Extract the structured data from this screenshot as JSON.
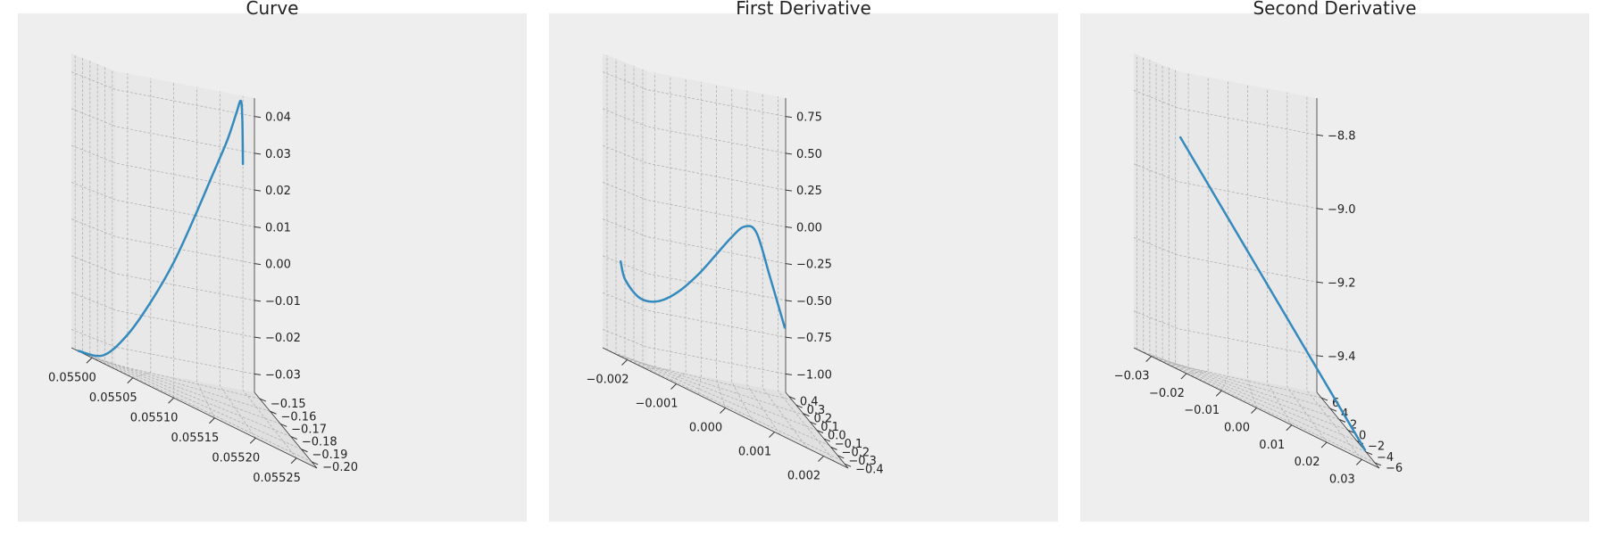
{
  "style": {
    "line_color": "#348ABD",
    "pane_left": "#e5e5e5",
    "pane_back": "#e8e8e8",
    "pane_floor": "#e0e0e0",
    "grid_color": "#b0b0b0",
    "background": "#eeeeee"
  },
  "chart_data": [
    {
      "type": "line3d",
      "title": "Curve",
      "grid": true,
      "xlim": [
        0.05498,
        0.05528
      ],
      "ylim": [
        -0.205,
        -0.145
      ],
      "zlim": [
        -0.036,
        0.046
      ],
      "xticks": [
        "0.05500",
        "0.05505",
        "0.05510",
        "0.05515",
        "0.05520",
        "0.05525"
      ],
      "yticks": [
        "−0.20",
        "−0.19",
        "−0.18",
        "−0.17",
        "−0.16",
        "−0.15"
      ],
      "zticks": [
        "−0.03",
        "−0.02",
        "−0.01",
        "0.00",
        "0.01",
        "0.02",
        "0.03",
        "0.04"
      ],
      "series": [
        {
          "x": [
            0.05498,
            0.05499,
            0.05501,
            0.05505,
            0.05509,
            0.05513,
            0.05516,
            0.05519,
            0.05521,
            0.05523,
            0.05525,
            0.05526
          ],
          "y": [
            -0.15,
            -0.151,
            -0.153,
            -0.157,
            -0.162,
            -0.168,
            -0.174,
            -0.18,
            -0.186,
            -0.192,
            -0.198,
            -0.204
          ],
          "z": [
            0.027,
            0.04,
            0.046,
            0.044,
            0.037,
            0.027,
            0.014,
            0.0,
            -0.013,
            -0.025,
            -0.034,
            -0.036
          ]
        }
      ]
    },
    {
      "type": "line3d",
      "title": "First Derivative",
      "grid": true,
      "xlim": [
        -0.0025,
        0.0025
      ],
      "ylim": [
        -0.42,
        0.42
      ],
      "zlim": [
        -1.1,
        0.9
      ],
      "xticks": [
        "−0.002",
        "−0.001",
        "0.000",
        "0.001",
        "0.002"
      ],
      "yticks": [
        "−0.4",
        "−0.3",
        "−0.2",
        "−0.1",
        "0.0",
        "0.1",
        "0.2",
        "0.3",
        "0.4"
      ],
      "zticks": [
        "−1.00",
        "−0.75",
        "−0.50",
        "−0.25",
        "0.00",
        "0.25",
        "0.50",
        "0.75"
      ],
      "series": [
        {
          "x": [
            -0.002,
            -0.0021,
            -0.002,
            -0.0016,
            -0.0011,
            -0.0005,
            0.0001,
            0.0007,
            0.0012,
            0.0016,
            0.0018,
            0.0017
          ],
          "y": [
            0.38,
            0.3,
            0.22,
            0.14,
            0.06,
            -0.02,
            -0.1,
            -0.18,
            -0.25,
            -0.31,
            -0.36,
            -0.38
          ],
          "z": [
            -0.62,
            -0.3,
            -0.02,
            0.02,
            -0.06,
            -0.19,
            -0.35,
            -0.51,
            -0.62,
            -0.65,
            -0.57,
            -0.46
          ]
        }
      ]
    },
    {
      "type": "line3d",
      "title": "Second Derivative",
      "grid": true,
      "xlim": [
        -0.036,
        0.036
      ],
      "ylim": [
        -6.5,
        6.5
      ],
      "zlim": [
        -9.52,
        -8.72
      ],
      "xticks": [
        "−0.03",
        "−0.02",
        "−0.01",
        "0.00",
        "0.01",
        "0.02",
        "0.03"
      ],
      "yticks": [
        "−6",
        "−4",
        "−2",
        "0",
        "2",
        "4",
        "6"
      ],
      "zticks": [
        "−9.4",
        "−9.2",
        "−9.0",
        "−8.8"
      ],
      "series": [
        {
          "x": [
            -0.03,
            0.03
          ],
          "y": [
            -6.0,
            6.0
          ],
          "z": [
            -8.9,
            -9.5
          ]
        }
      ]
    }
  ]
}
